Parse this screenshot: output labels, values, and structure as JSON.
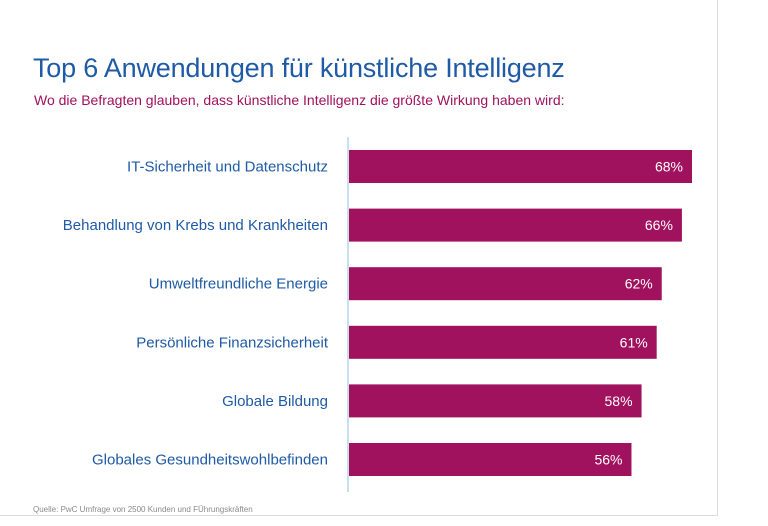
{
  "colors": {
    "title": "#1f5aa6",
    "subtitle": "#a0115e",
    "bar": "#a0115e",
    "category_label": "#1f5aa6",
    "axis_line": "#b9d3ec",
    "source": "#8a8a8a"
  },
  "source": "Quelle: PwC Umfrage von 2500 Kunden und FÜhrungskräften",
  "chart_data": {
    "type": "bar",
    "orientation": "horizontal",
    "title": "Top 6 Anwendungen für künstliche Intelligenz",
    "subtitle": "Wo die Befragten glauben, dass künstliche Intelligenz die größte Wirkung haben wird:",
    "categories": [
      "IT-Sicherheit und Datenschutz",
      "Behandlung von Krebs und Krankheiten",
      "Umweltfreundliche Energie",
      "Persönliche Finanzsicherheit",
      "Globale Bildung",
      "Globales Gesundheitswohlbefinden"
    ],
    "values": [
      68,
      66,
      62,
      61,
      58,
      56
    ],
    "value_labels": [
      "68%",
      "66%",
      "62%",
      "61%",
      "58%",
      "56%"
    ],
    "unit": "%",
    "xlim": [
      0,
      68
    ],
    "grid": false,
    "legend": "none"
  }
}
